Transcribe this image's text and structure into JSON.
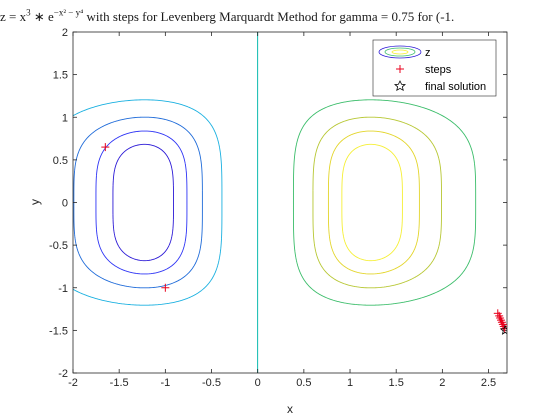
{
  "chart_data": {
    "type": "contour",
    "title_parts": {
      "lhs": "z = x",
      "x_exp": "3",
      "mid": " ∗ e",
      "e_exp": "−x² − y⁴",
      "rest": " with steps for Levenberg Marquardt Method for gamma = 0.75 for (-1."
    },
    "xlabel": "x",
    "ylabel": "y",
    "xlim": [
      -2,
      2.7
    ],
    "ylim": [
      -2,
      2
    ],
    "xticks": [
      -2,
      -1.5,
      -1,
      -0.5,
      0,
      0.5,
      1,
      1.5,
      2,
      2.5
    ],
    "yticks": [
      -2,
      -1.5,
      -1,
      -0.5,
      0,
      0.5,
      1,
      1.5,
      2
    ],
    "function": "z = x^3 * exp(-x^2 - y^4)",
    "contour_levels": [
      -0.33,
      -0.25,
      -0.15,
      -0.05,
      0.0,
      0.05,
      0.15,
      0.25,
      0.33
    ],
    "level_colors": [
      "#2c1ad6",
      "#2e34f5",
      "#1f6bd9",
      "#1ab0e0",
      "#26c2b8",
      "#3bbd6a",
      "#b7c733",
      "#e3d52a",
      "#f5ef35"
    ],
    "legend": {
      "location": "top-right",
      "entries": [
        {
          "label": "z",
          "kind": "contour"
        },
        {
          "label": "steps",
          "kind": "marker",
          "marker": "+",
          "color": "#e8001c"
        },
        {
          "label": "final solution",
          "kind": "marker",
          "marker": "star",
          "color": "#000000"
        }
      ]
    },
    "steps": [
      {
        "x": -1.65,
        "y": 0.65
      },
      {
        "x": -1.0,
        "y": -1.0
      },
      {
        "x": 2.6,
        "y": -1.3
      },
      {
        "x": 2.615,
        "y": -1.33
      },
      {
        "x": 2.625,
        "y": -1.355
      },
      {
        "x": 2.635,
        "y": -1.38
      },
      {
        "x": 2.645,
        "y": -1.405
      },
      {
        "x": 2.655,
        "y": -1.43
      },
      {
        "x": 2.665,
        "y": -1.455
      },
      {
        "x": 2.675,
        "y": -1.48
      }
    ],
    "final_solution": {
      "x": 2.68,
      "y": -1.5
    },
    "colors": {
      "steps": "#e8001c",
      "final": "#000000",
      "axes": "#262626",
      "zero_contour": "#20b8c8"
    }
  }
}
